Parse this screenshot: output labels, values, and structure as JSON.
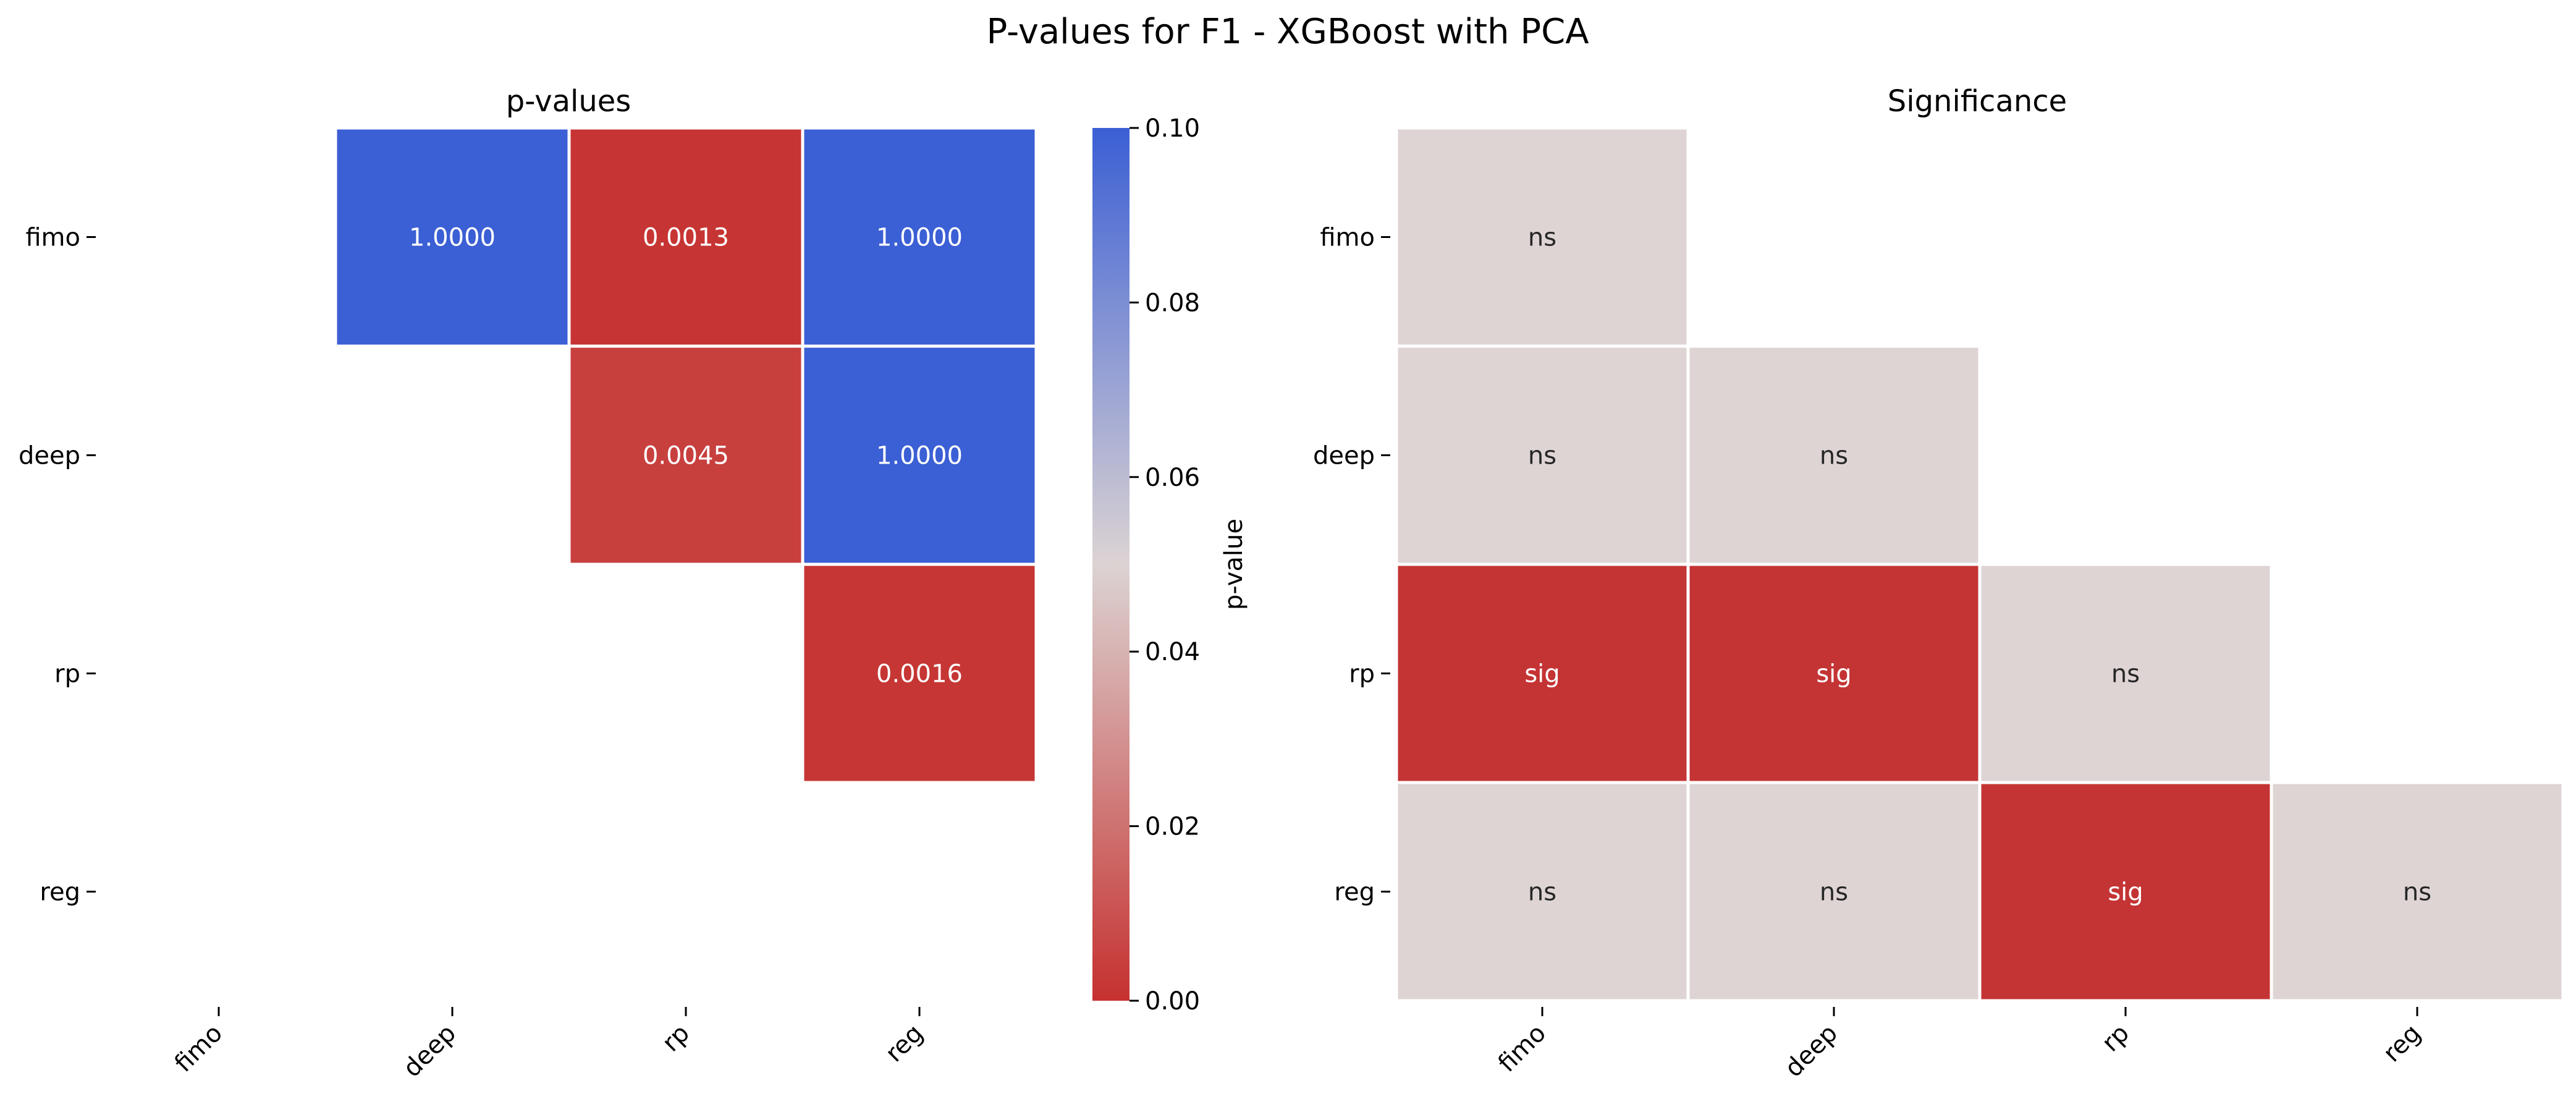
{
  "figure": {
    "title": "P-values for F1 - XGBoost with PCA"
  },
  "chart_data": [
    {
      "type": "heatmap",
      "title": "p-values",
      "rows": [
        "fimo",
        "deep",
        "rp",
        "reg"
      ],
      "cols": [
        "fimo",
        "deep",
        "rp",
        "reg"
      ],
      "values": [
        [
          null,
          1.0,
          0.0013,
          1.0
        ],
        [
          null,
          null,
          0.0045,
          1.0
        ],
        [
          null,
          null,
          null,
          0.0016
        ],
        [
          null,
          null,
          null,
          null
        ]
      ],
      "labels": [
        [
          null,
          "1.0000",
          "0.0013",
          "1.0000"
        ],
        [
          null,
          null,
          "0.0045",
          "1.0000"
        ],
        [
          null,
          null,
          null,
          "0.0016"
        ],
        [
          null,
          null,
          null,
          null
        ]
      ],
      "colorbar": {
        "label": "p-value",
        "range": [
          0.0,
          0.1
        ],
        "ticks": [
          "0.00",
          "0.02",
          "0.04",
          "0.06",
          "0.08",
          "0.10"
        ],
        "colormap": "coolwarm_r",
        "low_color": "#c5312f",
        "mid_color": "#dcd3d3",
        "high_color": "#3b5fd4"
      }
    },
    {
      "type": "heatmap",
      "title": "Significance",
      "rows": [
        "fimo",
        "deep",
        "rp",
        "reg"
      ],
      "cols": [
        "fimo",
        "deep",
        "rp",
        "reg"
      ],
      "labels": [
        [
          "ns",
          null,
          null,
          null
        ],
        [
          "ns",
          "ns",
          null,
          null
        ],
        [
          "sig",
          "sig",
          "ns",
          null
        ],
        [
          "ns",
          "ns",
          "sig",
          "ns"
        ]
      ],
      "colors": {
        "sig": "#c43434",
        "ns": "#dfd4d4"
      }
    }
  ]
}
